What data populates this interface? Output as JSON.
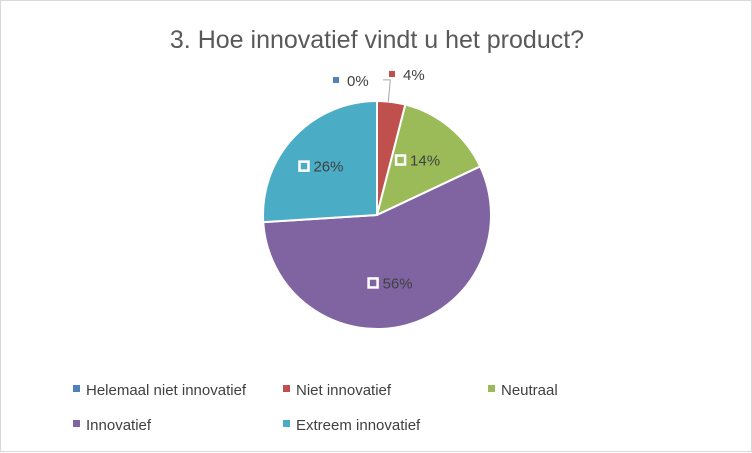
{
  "chart_data": {
    "type": "pie",
    "title": "3. Hoe innovatief vindt u het product?",
    "categories": [
      "Helemaal niet innovatief",
      "Niet innovatief",
      "Neutraal",
      "Innovatief",
      "Extreem innovatief"
    ],
    "values": [
      0,
      4,
      14,
      56,
      26
    ],
    "labels": [
      "0%",
      "4%",
      "14%",
      "56%",
      "26%"
    ],
    "colors": [
      "#4f81bd",
      "#c0504d",
      "#9bbb59",
      "#8064a2",
      "#4bacc6"
    ],
    "legend_position": "bottom"
  }
}
